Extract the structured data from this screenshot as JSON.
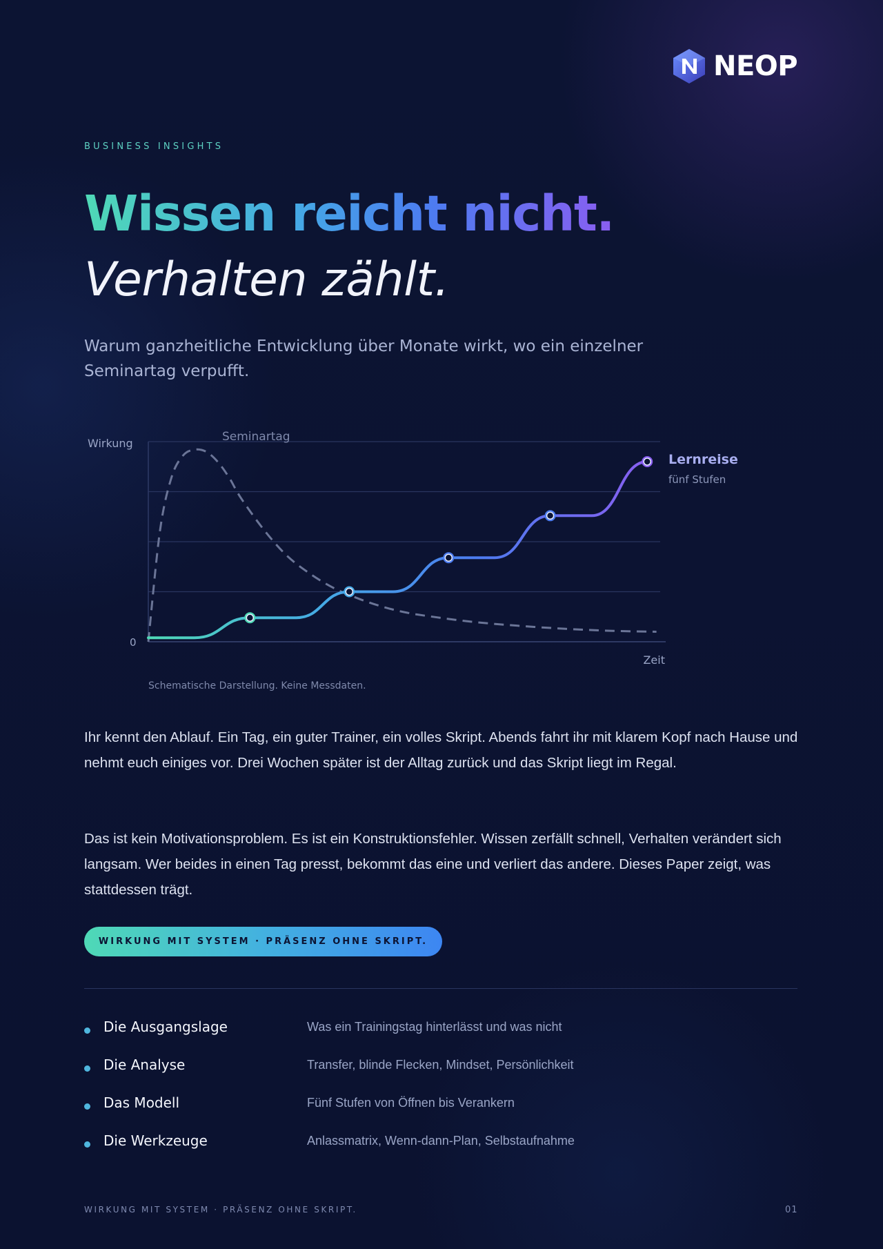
{
  "brand": {
    "name": "NEOP",
    "logo_icon": "hexagon-n-icon"
  },
  "eyebrow": "BUSINESS INSIGHTS",
  "headline": {
    "line1": "Wissen reicht nicht.",
    "line2": "Verhalten zählt."
  },
  "lead": "Warum ganzheitliche Entwicklung über Monate wirkt, wo ein einzelner Seminartag verpufft.",
  "chart_data": {
    "type": "line",
    "ylabel": "Wirkung",
    "xlabel": "Zeit",
    "y_tick": "0",
    "note": "Schematische Darstellung. Keine Messdaten.",
    "grid": true,
    "series": [
      {
        "name": "Seminartag",
        "style": "dashed",
        "color": "#6b7597",
        "x": [
          0,
          0.25,
          0.5,
          0.75,
          1,
          1.25,
          1.5,
          1.75,
          2,
          2.5,
          3,
          3.5,
          4,
          4.5,
          5,
          5.5,
          6,
          7,
          8,
          9,
          10,
          11
        ],
        "y": [
          0,
          55,
          82,
          93,
          96,
          95,
          90,
          82,
          72,
          56,
          43,
          34,
          27,
          22,
          18,
          15,
          13,
          10,
          8,
          6.5,
          5.5,
          5
        ]
      },
      {
        "name": "Lernreise",
        "subtitle": "fünf Stufen",
        "style": "solid",
        "colors": [
          "#4fd9b6",
          "#45a9e6",
          "#4c7cf0",
          "#8a5ef0"
        ],
        "x": [
          0,
          1,
          2.2,
          3.2,
          4.35,
          5.3,
          6.5,
          7.5,
          8.7,
          9.6,
          10.8
        ],
        "y": [
          2,
          2,
          12,
          12,
          25,
          25,
          42,
          42,
          63,
          63,
          90
        ],
        "markers": [
          2,
          4,
          6,
          8,
          10
        ]
      }
    ],
    "xlim": [
      0,
      11.2
    ],
    "ylim": [
      0,
      100
    ]
  },
  "paragraphs": [
    "Ihr kennt den Ablauf. Ein Tag, ein guter Trainer, ein volles Skript. Abends fahrt ihr mit klarem Kopf nach Hause und nehmt euch einiges vor. Drei Wochen später ist der Alltag zurück und das Skript liegt im Regal.",
    "Das ist kein Motivationsproblem. Es ist ein Konstruktionsfehler. Wissen zerfällt schnell, Verhalten verändert sich langsam. Wer beides in einen Tag presst, bekommt das eine und verliert das andere. Dieses Paper zeigt, was stattdessen trägt."
  ],
  "tagline": "WIRKUNG MIT SYSTEM · PRÄSENZ OHNE SKRIPT.",
  "toc": [
    {
      "title": "Die Ausgangslage",
      "desc": "Was ein Trainingstag hinterlässt und was nicht"
    },
    {
      "title": "Die Analyse",
      "desc": "Transfer, blinde Flecken, Mindset, Persönlichkeit"
    },
    {
      "title": "Das Modell",
      "desc": "Fünf Stufen von Öffnen bis Verankern"
    },
    {
      "title": "Die Werkzeuge",
      "desc": "Anlassmatrix, Wenn-dann-Plan, Selbstaufnahme"
    }
  ],
  "footer": {
    "tagline": "WIRKUNG MIT SYSTEM · PRÄSENZ OHNE SKRIPT.",
    "page": "01"
  }
}
